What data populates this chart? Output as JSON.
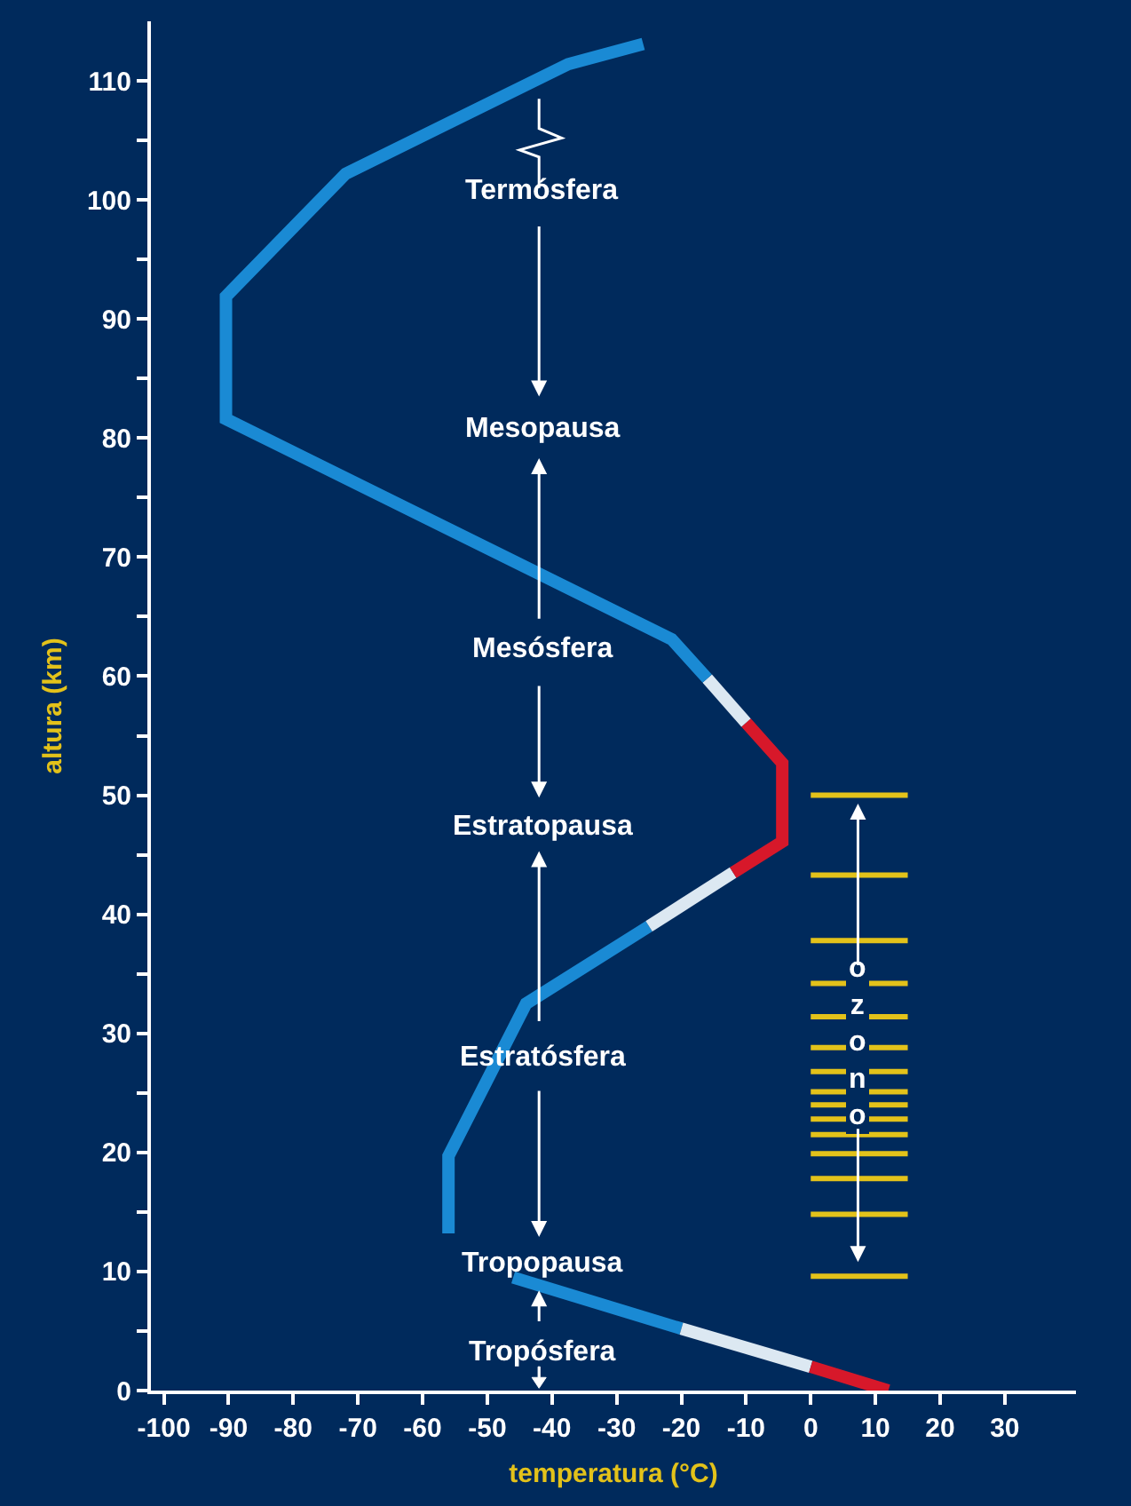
{
  "chart_data": {
    "type": "line",
    "xlabel": "temperatura (°C)",
    "ylabel": "altura (km)",
    "xlim": [
      -102,
      41
    ],
    "ylim": [
      0,
      115
    ],
    "xticks": [
      -100,
      -90,
      -80,
      -70,
      -60,
      -50,
      -40,
      -30,
      -20,
      -10,
      0,
      10,
      20,
      30
    ],
    "yticks": [
      0,
      {
        "value": 5,
        "label": null
      },
      10,
      {
        "value": 15,
        "label": null
      },
      20,
      {
        "value": 25,
        "label": null
      },
      30,
      {
        "value": 35,
        "label": null
      },
      40,
      {
        "value": 45,
        "label": null
      },
      50,
      {
        "value": 55,
        "label": null
      },
      60,
      {
        "value": 65,
        "label": null
      },
      70,
      {
        "value": 75,
        "label": null
      },
      80,
      {
        "value": 85,
        "label": null
      },
      90,
      {
        "value": 95,
        "label": null
      },
      100,
      {
        "value": 105,
        "label": null
      },
      110
    ],
    "grid": false,
    "marker": "none",
    "line_style": "solid",
    "annotations": [
      "Termósfera",
      "Mesopausa",
      "Mesósfera",
      "Estratopausa",
      "Estratósfera",
      "Tropopausa",
      "Tropósfera",
      {
        "text": "ozono",
        "x": 7.3,
        "y": 29.2
      }
    ],
    "series": [
      {
        "color": "#1a8ad4",
        "x": [
          -46,
          -20
        ],
        "values": [
          9.5,
          5.2
        ]
      },
      {
        "color": "#dce8f2",
        "x": [
          -20,
          0
        ],
        "values": [
          5.2,
          2.0
        ]
      },
      {
        "color": "#d7182a",
        "x": [
          0,
          12
        ],
        "values": [
          2.0,
          0
        ]
      },
      {
        "color": "#1a8ad4",
        "x": [
          -56,
          -56,
          -44,
          -25
        ],
        "values": [
          13.2,
          19.7,
          32.5,
          39.0
        ]
      },
      {
        "color": "#dce8f2",
        "x": [
          -25,
          -12
        ],
        "values": [
          39.0,
          43.5
        ]
      },
      {
        "color": "#d7182a",
        "x": [
          -12,
          -4.4,
          -4.4,
          -10
        ],
        "values": [
          43.5,
          46.1,
          52.7,
          56.1
        ]
      },
      {
        "color": "#dce8f2",
        "x": [
          -10,
          -16
        ],
        "values": [
          56.1,
          59.8
        ]
      },
      {
        "color": "#1a8ad4",
        "x": [
          -16,
          -21.5,
          -90.4,
          -90.4,
          -71.9,
          -37.5,
          -25.9
        ],
        "values": [
          59.8,
          63.1,
          81.6,
          91.9,
          102.2,
          111.4,
          113.1
        ]
      },
      {
        "color": "#e3c21a",
        "x": [
          0,
          15
        ],
        "values": [
          50,
          50
        ]
      },
      {
        "color": "#e3c21a",
        "x": [
          0,
          15
        ],
        "values": [
          43.3,
          43.3
        ]
      },
      {
        "color": "#e3c21a",
        "x": [
          0,
          15
        ],
        "values": [
          37.8,
          37.8
        ]
      },
      {
        "color": "#e3c21a",
        "x": [
          0,
          15
        ],
        "values": [
          34.2,
          34.2
        ]
      },
      {
        "color": "#e3c21a",
        "x": [
          0,
          15
        ],
        "values": [
          31.4,
          31.4
        ]
      },
      {
        "color": "#e3c21a",
        "x": [
          0,
          15
        ],
        "values": [
          28.8,
          28.8
        ]
      },
      {
        "color": "#e3c21a",
        "x": [
          0,
          15
        ],
        "values": [
          26.8,
          26.8
        ]
      },
      {
        "color": "#e3c21a",
        "x": [
          0,
          15
        ],
        "values": [
          25.1,
          25.1
        ]
      },
      {
        "color": "#e3c21a",
        "x": [
          0,
          15
        ],
        "values": [
          24.0,
          24.0
        ]
      },
      {
        "color": "#e3c21a",
        "x": [
          0,
          15
        ],
        "values": [
          22.8,
          22.8
        ]
      },
      {
        "color": "#e3c21a",
        "x": [
          0,
          15
        ],
        "values": [
          21.5,
          21.5
        ]
      },
      {
        "color": "#e3c21a",
        "x": [
          0,
          15
        ],
        "values": [
          19.9,
          19.9
        ]
      },
      {
        "color": "#e3c21a",
        "x": [
          0,
          15
        ],
        "values": [
          17.8,
          17.8
        ]
      },
      {
        "color": "#e3c21a",
        "x": [
          0,
          15
        ],
        "values": [
          14.8,
          14.8
        ]
      },
      {
        "color": "#e3c21a",
        "x": [
          0,
          15
        ],
        "values": [
          9.6,
          9.6
        ]
      }
    ]
  }
}
